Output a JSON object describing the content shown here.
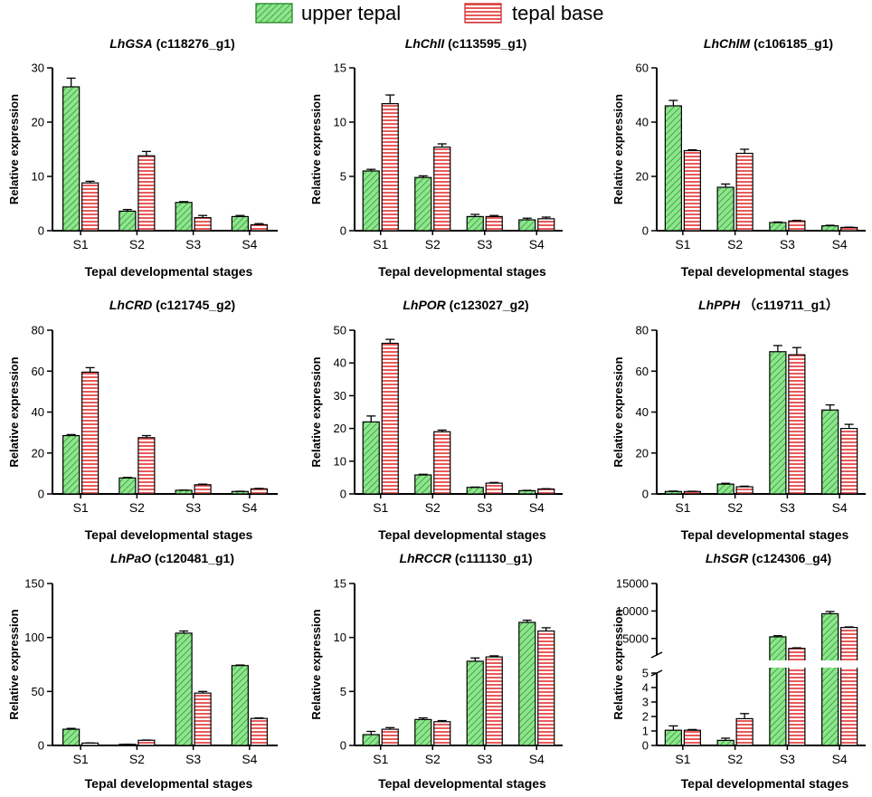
{
  "legend": {
    "items": [
      {
        "label": "upper tepal",
        "fill": "#8ee58e",
        "stroke": "#1a7a1a",
        "pattern": "diagonal"
      },
      {
        "label": "tepal base",
        "fill": "#ffd7d7",
        "stroke": "#c81e1e",
        "pattern": "horizontal"
      }
    ]
  },
  "xlabel": "Tepal developmental stages",
  "ylabel": "Relative expression",
  "chart_data": [
    {
      "type": "bar",
      "gene": "LhGSA",
      "id": " (c118276_g1)",
      "categories": [
        "S1",
        "S2",
        "S3",
        "S4"
      ],
      "series": [
        {
          "name": "upper tepal",
          "values": [
            26.5,
            3.6,
            5.2,
            2.6
          ],
          "errors": [
            1.6,
            0.3,
            0.15,
            0.2
          ]
        },
        {
          "name": "tepal base",
          "values": [
            8.8,
            13.8,
            2.4,
            1.1
          ],
          "errors": [
            0.3,
            0.8,
            0.4,
            0.2
          ]
        }
      ],
      "ylim": [
        0,
        30
      ],
      "yticks": [
        0,
        10,
        20,
        30
      ],
      "yticklabels": [
        "0",
        "10",
        "20",
        "30"
      ]
    },
    {
      "type": "bar",
      "gene": "LhChlI",
      "id": " (c113595_g1)",
      "categories": [
        "S1",
        "S2",
        "S3",
        "S4"
      ],
      "series": [
        {
          "name": "upper tepal",
          "values": [
            5.5,
            4.9,
            1.3,
            1.0
          ],
          "errors": [
            0.15,
            0.15,
            0.2,
            0.15
          ]
        },
        {
          "name": "tepal base",
          "values": [
            11.7,
            7.7,
            1.3,
            1.1
          ],
          "errors": [
            0.8,
            0.3,
            0.1,
            0.15
          ]
        }
      ],
      "ylim": [
        0,
        15
      ],
      "yticks": [
        0,
        5,
        10,
        15
      ],
      "yticklabels": [
        "0",
        "5",
        "10",
        "15"
      ]
    },
    {
      "type": "bar",
      "gene": "LhChlM",
      "id": " (c106185_g1)",
      "categories": [
        "S1",
        "S2",
        "S3",
        "S4"
      ],
      "series": [
        {
          "name": "upper tepal",
          "values": [
            46,
            16,
            3,
            1.8
          ],
          "errors": [
            2,
            1.2,
            0.2,
            0.2
          ]
        },
        {
          "name": "tepal base",
          "values": [
            29.5,
            28.5,
            3.6,
            1.2
          ],
          "errors": [
            0.3,
            1.5,
            0.2,
            0.1
          ]
        }
      ],
      "ylim": [
        0,
        60
      ],
      "yticks": [
        0,
        20,
        40,
        60
      ],
      "yticklabels": [
        "0",
        "20",
        "40",
        "60"
      ]
    },
    {
      "type": "bar",
      "gene": "LhCRD",
      "id": " (c121745_g2)",
      "categories": [
        "S1",
        "S2",
        "S3",
        "S4"
      ],
      "series": [
        {
          "name": "upper tepal",
          "values": [
            28.5,
            7.8,
            1.8,
            1.2
          ],
          "errors": [
            0.5,
            0.3,
            0.1,
            0.1
          ]
        },
        {
          "name": "tepal base",
          "values": [
            59.5,
            27.5,
            4.5,
            2.5
          ],
          "errors": [
            2.2,
            1,
            0.3,
            0.2
          ]
        }
      ],
      "ylim": [
        0,
        80
      ],
      "yticks": [
        0,
        20,
        40,
        60,
        80
      ],
      "yticklabels": [
        "0",
        "20",
        "40",
        "60",
        "80"
      ]
    },
    {
      "type": "bar",
      "gene": "LhPOR",
      "id": " (c123027_g2)",
      "categories": [
        "S1",
        "S2",
        "S3",
        "S4"
      ],
      "series": [
        {
          "name": "upper tepal",
          "values": [
            22,
            5.8,
            2,
            1
          ],
          "errors": [
            1.8,
            0.2,
            0.1,
            0.1
          ]
        },
        {
          "name": "tepal base",
          "values": [
            46,
            19,
            3.3,
            1.5
          ],
          "errors": [
            1.2,
            0.5,
            0.2,
            0.1
          ]
        }
      ],
      "ylim": [
        0,
        50
      ],
      "yticks": [
        0,
        10,
        20,
        30,
        40,
        50
      ],
      "yticklabels": [
        "0",
        "10",
        "20",
        "30",
        "40",
        "50"
      ]
    },
    {
      "type": "bar",
      "gene": "LhPPH",
      "id": " （c119711_g1）",
      "categories": [
        "S1",
        "S2",
        "S3",
        "S4"
      ],
      "series": [
        {
          "name": "upper tepal",
          "values": [
            1.2,
            4.8,
            69.5,
            41
          ],
          "errors": [
            0.2,
            0.4,
            3,
            2.5
          ]
        },
        {
          "name": "tepal base",
          "values": [
            1.2,
            3.5,
            68,
            32
          ],
          "errors": [
            0.1,
            0.3,
            3.5,
            2
          ]
        }
      ],
      "ylim": [
        0,
        80
      ],
      "yticks": [
        0,
        20,
        40,
        60,
        80
      ],
      "yticklabels": [
        "0",
        "20",
        "40",
        "60",
        "80"
      ]
    },
    {
      "type": "bar",
      "gene": "LhPaO",
      "id": " (c120481_g1)",
      "categories": [
        "S1",
        "S2",
        "S3",
        "S4"
      ],
      "series": [
        {
          "name": "upper tepal",
          "values": [
            15,
            1,
            104,
            74
          ],
          "errors": [
            0.8,
            0.1,
            2,
            0.5
          ]
        },
        {
          "name": "tepal base",
          "values": [
            2.2,
            4.8,
            48.5,
            25
          ],
          "errors": [
            0.1,
            0.2,
            1.5,
            0.5
          ]
        }
      ],
      "ylim": [
        0,
        150
      ],
      "yticks": [
        0,
        50,
        100,
        150
      ],
      "yticklabels": [
        "0",
        "50",
        "100",
        "150"
      ]
    },
    {
      "type": "bar",
      "gene": "LhRCCR",
      "id": " (c111130_g1)",
      "categories": [
        "S1",
        "S2",
        "S3",
        "S4"
      ],
      "series": [
        {
          "name": "upper tepal",
          "values": [
            1.0,
            2.4,
            7.8,
            11.4
          ],
          "errors": [
            0.3,
            0.15,
            0.3,
            0.2
          ]
        },
        {
          "name": "tepal base",
          "values": [
            1.5,
            2.2,
            8.2,
            10.6
          ],
          "errors": [
            0.15,
            0.1,
            0.1,
            0.3
          ]
        }
      ],
      "ylim": [
        0,
        15
      ],
      "yticks": [
        0,
        5,
        10,
        15
      ],
      "yticklabels": [
        "0",
        "5",
        "10",
        "15"
      ]
    },
    {
      "type": "bar",
      "gene": "LhSGR",
      "id": " (c124306_g4)",
      "categories": [
        "S1",
        "S2",
        "S3",
        "S4"
      ],
      "series": [
        {
          "name": "upper tepal",
          "values": [
            1.05,
            0.35,
            5300,
            9500
          ],
          "errors": [
            0.3,
            0.15,
            200,
            400
          ]
        },
        {
          "name": "tepal base",
          "values": [
            1.05,
            1.85,
            3200,
            7000
          ],
          "errors": [
            0.05,
            0.35,
            100,
            100
          ]
        }
      ],
      "ylim": [
        0,
        15000
      ],
      "axis_break": true,
      "lower_ylim": [
        0,
        5
      ],
      "upper_ylim": [
        2000,
        15000
      ],
      "yticks_lower": [
        0,
        1,
        2,
        3,
        4,
        5
      ],
      "yticks_upper": [
        5000,
        10000,
        15000
      ],
      "yticklabels": [
        "0",
        "1",
        "2",
        "3",
        "4",
        "5",
        "5000",
        "10000",
        "15000"
      ]
    }
  ]
}
